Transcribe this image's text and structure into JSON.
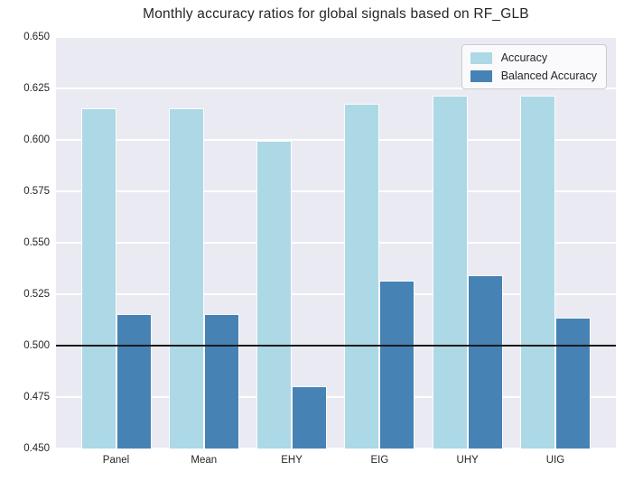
{
  "title": "Monthly accuracy ratios for global signals based on RF_GLB",
  "chart_data": {
    "type": "bar",
    "title": "Monthly accuracy ratios for global signals based on RF_GLB",
    "categories": [
      "Panel",
      "Mean",
      "EHY",
      "EIG",
      "UHY",
      "UIG"
    ],
    "series": [
      {
        "name": "Accuracy",
        "color": "#ADD8E6",
        "values": [
          0.615,
          0.615,
          0.599,
          0.617,
          0.621,
          0.621
        ]
      },
      {
        "name": "Balanced Accuracy",
        "color": "#4682B4",
        "values": [
          0.515,
          0.515,
          0.48,
          0.531,
          0.534,
          0.513
        ]
      }
    ],
    "xlabel": "",
    "ylabel": "",
    "ylim": [
      0.45,
      0.65
    ],
    "ytick_step": 0.025,
    "yticks": [
      "0.650",
      "0.625",
      "0.600",
      "0.575",
      "0.550",
      "0.525",
      "0.500",
      "0.475",
      "0.450"
    ],
    "reference_line": 0.5,
    "grid": true,
    "legend_position": "upper right",
    "colors": {
      "plot_bg": "#EAEAF2",
      "grid": "#FFFFFF",
      "reference_line": "#1A1A1A",
      "text": "#262626"
    }
  }
}
